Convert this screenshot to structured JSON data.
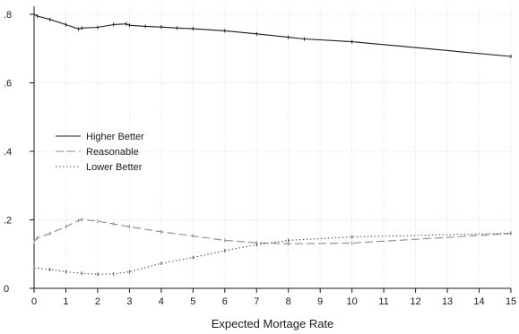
{
  "chart_data": {
    "type": "line",
    "title": "",
    "xlabel": "Expected Mortage Rate",
    "ylabel": "",
    "xlim": [
      0,
      15
    ],
    "ylim": [
      0,
      0.8
    ],
    "x_ticks": [
      0,
      1,
      2,
      3,
      4,
      5,
      6,
      7,
      8,
      9,
      10,
      11,
      12,
      13,
      14,
      15
    ],
    "x_tick_labels": [
      "0",
      "1",
      "2",
      "3",
      "4",
      "5",
      "6",
      "7",
      "8",
      "9",
      "10",
      "11",
      "12",
      "13",
      "14",
      "15"
    ],
    "y_ticks": [
      0,
      0.2,
      0.4,
      0.6,
      0.8
    ],
    "y_tick_labels": [
      "0",
      ".2",
      ".4",
      ".6",
      ".8"
    ],
    "grid": true,
    "legend_position": "left-middle",
    "series": [
      {
        "name": "Higher Better",
        "style": "solid",
        "color": "#1a1a1a",
        "x": [
          0,
          0.1,
          0.5,
          1,
          1.4,
          1.5,
          2,
          2.5,
          2.9,
          3,
          3.5,
          4,
          4.5,
          5,
          6,
          7,
          8,
          8.5,
          10,
          15
        ],
        "y": [
          0.8,
          0.795,
          0.785,
          0.77,
          0.757,
          0.76,
          0.762,
          0.77,
          0.772,
          0.768,
          0.765,
          0.763,
          0.76,
          0.758,
          0.752,
          0.743,
          0.733,
          0.728,
          0.72,
          0.677
        ]
      },
      {
        "name": "Reasonable",
        "style": "dashed",
        "color": "#8a8a8a",
        "x": [
          0,
          0.1,
          0.5,
          1,
          1.4,
          1.5,
          2,
          2.5,
          3,
          4,
          5,
          6,
          7,
          8,
          10,
          15
        ],
        "y": [
          0.136,
          0.147,
          0.16,
          0.18,
          0.198,
          0.201,
          0.196,
          0.188,
          0.18,
          0.165,
          0.153,
          0.14,
          0.133,
          0.13,
          0.132,
          0.16
        ]
      },
      {
        "name": "Lower Better",
        "style": "dotted",
        "color": "#555555",
        "x": [
          0,
          0.5,
          1,
          1.5,
          2,
          2.5,
          3,
          4,
          5,
          6,
          7,
          8,
          10,
          15
        ],
        "y": [
          0.06,
          0.055,
          0.048,
          0.044,
          0.041,
          0.042,
          0.048,
          0.073,
          0.09,
          0.11,
          0.127,
          0.14,
          0.15,
          0.161
        ]
      }
    ]
  }
}
